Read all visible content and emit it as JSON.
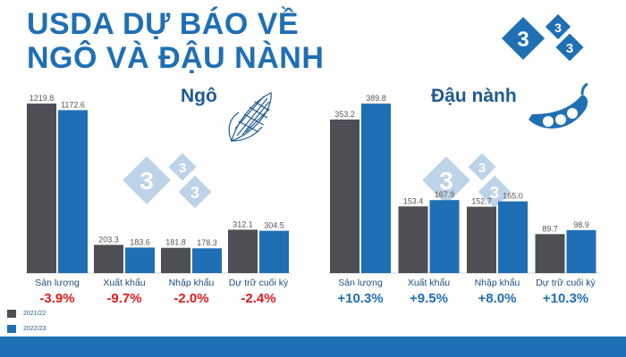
{
  "title_line1": "USDA DỰ BÁO VỀ",
  "title_line2": "NGÔ VÀ ĐẬU NÀNH",
  "logo_digit": "3",
  "colors": {
    "series_2021": "#4d4f55",
    "series_2022": "#1f6fb5",
    "negative": "#e3191c",
    "positive": "#1f6fb5",
    "title": "#1f6fb5"
  },
  "legend": [
    {
      "label": "2021/22",
      "color": "#4d4f55"
    },
    {
      "label": "2022/23",
      "color": "#1f6fb5"
    }
  ],
  "chart_data": [
    {
      "type": "bar",
      "title": "Ngô",
      "categories": [
        "Sản lượng",
        "Xuất khẩu",
        "Nhập khẩu",
        "Dự trữ cuối kỳ"
      ],
      "series": [
        {
          "name": "2021/22",
          "values": [
            1219.8,
            203.3,
            181.8,
            312.1
          ]
        },
        {
          "name": "2022/23",
          "values": [
            1172.6,
            183.6,
            178.3,
            304.5
          ]
        }
      ],
      "changes": [
        "-3.9%",
        "-9.7%",
        "-2.0%",
        "-2.4%"
      ],
      "ylim": [
        0,
        1220
      ]
    },
    {
      "type": "bar",
      "title": "Đậu nành",
      "categories": [
        "Sản lượng",
        "Xuất khẩu",
        "Nhập khẩu",
        "Dự trữ cuối kỳ"
      ],
      "series": [
        {
          "name": "2021/22",
          "values": [
            353.2,
            153.4,
            152.7,
            89.7
          ]
        },
        {
          "name": "2022/23",
          "values": [
            389.8,
            167.9,
            165.0,
            98.9
          ]
        }
      ],
      "changes": [
        "+10.3%",
        "+9.5%",
        "+8.0%",
        "+10.3%"
      ],
      "ylim": [
        0,
        390
      ]
    }
  ]
}
